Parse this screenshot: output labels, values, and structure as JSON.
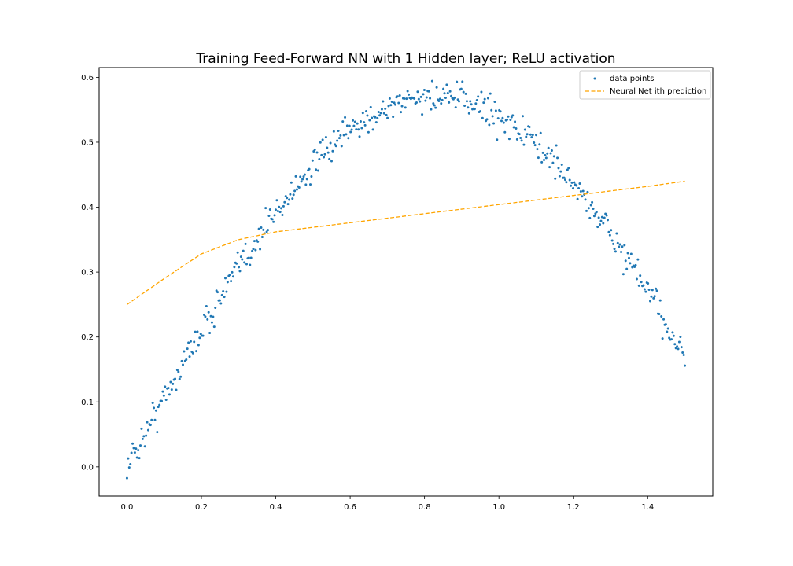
{
  "chart_data": {
    "type": "scatter",
    "title": "Training Feed-Forward NN with 1 Hidden layer; ReLU activation",
    "xlabel": "",
    "ylabel": "",
    "xlim": [
      -0.075,
      1.575
    ],
    "ylim": [
      -0.045,
      0.615
    ],
    "x_ticks": [
      0.0,
      0.2,
      0.4,
      0.6,
      0.8,
      1.0,
      1.2,
      1.4
    ],
    "x_tick_labels": [
      "0.0",
      "0.2",
      "0.4",
      "0.6",
      "0.8",
      "1.0",
      "1.2",
      "1.4"
    ],
    "y_ticks": [
      0.0,
      0.1,
      0.2,
      0.3,
      0.4,
      0.5,
      0.6
    ],
    "y_tick_labels": [
      "0.0",
      "0.1",
      "0.2",
      "0.3",
      "0.4",
      "0.5",
      "0.6"
    ],
    "grid": false,
    "legend_position": "top-right",
    "scatter_series": {
      "name": "data points",
      "color": "#1f77b4",
      "x_range": [
        0.0,
        1.5
      ],
      "n_points": 500,
      "trend": "0.57*sin(pi*x/1.66) + 0.02*noise(x)"
    },
    "series": [
      {
        "name": "Neural Net ith prediction",
        "style": "dashed",
        "color": "#ffa500",
        "x": [
          0.0,
          0.1,
          0.2,
          0.3,
          0.35,
          0.4,
          0.6,
          0.8,
          1.0,
          1.2,
          1.4,
          1.5
        ],
        "values": [
          0.25,
          0.29,
          0.328,
          0.35,
          0.356,
          0.362,
          0.376,
          0.39,
          0.404,
          0.418,
          0.432,
          0.44
        ]
      }
    ],
    "legend": [
      "data points",
      "Neural Net ith prediction"
    ]
  }
}
